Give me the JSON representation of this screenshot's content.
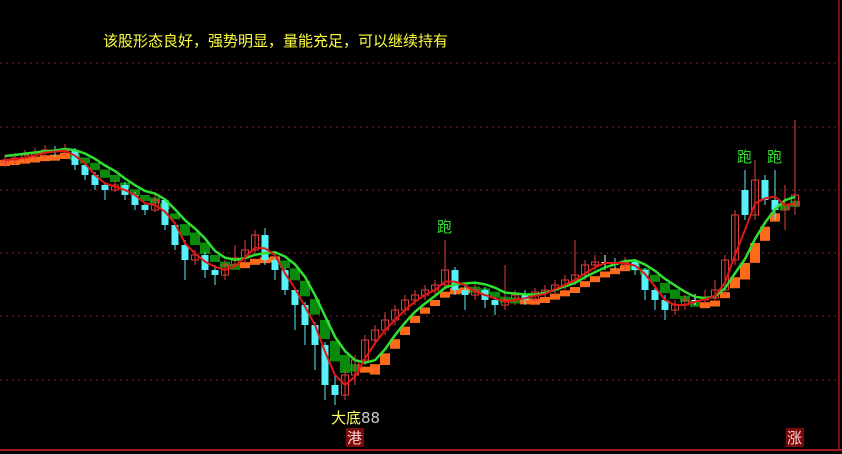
{
  "comment": "该股形态良好，强势明显，量能充足，可以继续持有",
  "colors": {
    "up": "#e03c3c",
    "down": "#55f0f8",
    "band_up": "#ff6a1a",
    "band_down": "#0a8a0a",
    "fast_line": "#e01818",
    "slow_line": "#30e030",
    "grid": "#8a1a1a",
    "comment": "#ffff40",
    "label_run": "#30e030",
    "label_bottom": "#ffff60"
  },
  "chart_data": {
    "type": "candlestick",
    "grid": true,
    "overlays": [
      {
        "type": "moving-average",
        "period": 3,
        "color": "#e01818"
      },
      {
        "type": "moving-average",
        "period": 6,
        "color": "#30e030"
      }
    ],
    "candles": [
      [
        28.8,
        29.5,
        28.3,
        29.0
      ],
      [
        29.0,
        29.7,
        28.5,
        29.2
      ],
      [
        29.2,
        30.0,
        28.8,
        29.5
      ],
      [
        29.5,
        30.2,
        29.0,
        29.7
      ],
      [
        29.7,
        30.5,
        29.2,
        30.0
      ],
      [
        30.0,
        30.4,
        29.3,
        29.8
      ],
      [
        29.8,
        30.6,
        29.4,
        30.0
      ],
      [
        30.0,
        30.2,
        28.0,
        28.5
      ],
      [
        28.5,
        28.8,
        27.0,
        27.5
      ],
      [
        27.5,
        27.8,
        26.0,
        26.5
      ],
      [
        26.5,
        26.8,
        25.0,
        26.0
      ],
      [
        26.0,
        27.0,
        25.8,
        26.5
      ],
      [
        26.5,
        26.8,
        25.0,
        25.5
      ],
      [
        25.5,
        25.8,
        24.0,
        24.5
      ],
      [
        24.5,
        24.8,
        23.5,
        24.0
      ],
      [
        24.0,
        25.5,
        23.8,
        25.0
      ],
      [
        25.0,
        25.2,
        22.0,
        22.5
      ],
      [
        22.5,
        22.8,
        20.0,
        20.5
      ],
      [
        20.5,
        21.0,
        17.0,
        19.0
      ],
      [
        19.0,
        20.0,
        18.5,
        19.5
      ],
      [
        19.5,
        19.8,
        17.2,
        18.0
      ],
      [
        18.0,
        18.5,
        16.5,
        17.5
      ],
      [
        17.5,
        19.0,
        17.0,
        18.5
      ],
      [
        18.5,
        20.5,
        18.2,
        19.2
      ],
      [
        19.2,
        21.0,
        18.8,
        20.0
      ],
      [
        20.0,
        22.0,
        19.5,
        21.5
      ],
      [
        21.5,
        22.2,
        18.5,
        19.0
      ],
      [
        19.0,
        19.5,
        17.0,
        18.0
      ],
      [
        18.0,
        18.2,
        15.5,
        16.0
      ],
      [
        16.0,
        16.2,
        12.0,
        14.5
      ],
      [
        14.5,
        14.8,
        10.5,
        12.5
      ],
      [
        12.5,
        12.8,
        8.0,
        10.5
      ],
      [
        10.5,
        10.8,
        5.0,
        6.5
      ],
      [
        6.5,
        7.5,
        4.5,
        5.5
      ],
      [
        5.5,
        8.0,
        5.0,
        7.5
      ],
      [
        7.5,
        9.5,
        6.5,
        9.0
      ],
      [
        9.0,
        11.5,
        8.5,
        11.0
      ],
      [
        11.0,
        12.5,
        10.5,
        12.0
      ],
      [
        12.0,
        13.8,
        11.5,
        13.0
      ],
      [
        13.0,
        14.5,
        12.5,
        14.0
      ],
      [
        14.0,
        15.5,
        13.5,
        15.0
      ],
      [
        15.0,
        16.0,
        14.5,
        15.5
      ],
      [
        15.5,
        16.5,
        15.0,
        16.0
      ],
      [
        16.0,
        17.0,
        15.5,
        16.5
      ],
      [
        16.5,
        21.0,
        16.0,
        18.0
      ],
      [
        18.0,
        18.3,
        15.5,
        16.0
      ],
      [
        16.0,
        16.5,
        14.0,
        15.5
      ],
      [
        15.5,
        16.8,
        15.0,
        16.0
      ],
      [
        16.0,
        16.3,
        14.2,
        15.0
      ],
      [
        15.0,
        15.3,
        13.5,
        14.5
      ],
      [
        14.5,
        18.5,
        14.0,
        15.0
      ],
      [
        15.0,
        16.0,
        14.5,
        15.5
      ],
      [
        15.5,
        16.0,
        14.5,
        15.0
      ],
      [
        15.0,
        16.2,
        14.8,
        15.8
      ],
      [
        15.8,
        16.5,
        15.3,
        16.0
      ],
      [
        16.0,
        17.0,
        15.5,
        16.5
      ],
      [
        16.5,
        17.5,
        16.0,
        17.0
      ],
      [
        17.0,
        21.0,
        16.5,
        17.5
      ],
      [
        17.5,
        19.0,
        17.0,
        18.5
      ],
      [
        18.5,
        19.5,
        18.0,
        18.8
      ],
      [
        18.8,
        19.5,
        18.0,
        18.8
      ],
      [
        18.8,
        19.2,
        18.0,
        18.5
      ],
      [
        18.5,
        19.3,
        18.0,
        18.8
      ],
      [
        18.8,
        19.0,
        17.5,
        18.0
      ],
      [
        18.0,
        18.2,
        15.0,
        16.0
      ],
      [
        16.0,
        16.5,
        14.0,
        15.0
      ],
      [
        15.0,
        15.5,
        13.0,
        14.0
      ],
      [
        14.0,
        15.0,
        13.5,
        14.5
      ],
      [
        14.5,
        15.5,
        14.0,
        15.0
      ],
      [
        15.0,
        15.6,
        14.5,
        15.0
      ],
      [
        15.0,
        16.0,
        14.6,
        15.2
      ],
      [
        15.2,
        17.0,
        15.0,
        16.0
      ],
      [
        16.0,
        19.5,
        15.5,
        19.0
      ],
      [
        19.0,
        24.0,
        18.5,
        23.5
      ],
      [
        26.0,
        28.0,
        23.0,
        23.5
      ],
      [
        23.5,
        29.0,
        23.0,
        27.0
      ],
      [
        27.0,
        27.5,
        24.5,
        25.0
      ],
      [
        25.0,
        28.0,
        23.0,
        24.0
      ],
      [
        24.0,
        26.5,
        22.0,
        24.5
      ],
      [
        24.5,
        33.0,
        23.5,
        25.5
      ]
    ],
    "annotations": [
      {
        "candle": 44,
        "text": "跑",
        "position": "above",
        "style": "run"
      },
      {
        "candle": 74,
        "text": "跑",
        "position": "above",
        "style": "run"
      },
      {
        "candle": 77,
        "text": "跑",
        "position": "above",
        "style": "run"
      },
      {
        "candle": 33,
        "text": "大底",
        "position": "below",
        "style": "bottom"
      },
      {
        "candle": 33,
        "text": "88",
        "position": "below-right",
        "style": "value"
      },
      {
        "candle": 35,
        "text": "港",
        "position": "baseline",
        "style": "tag"
      },
      {
        "candle": 79,
        "text": "涨",
        "position": "baseline",
        "style": "tag"
      }
    ]
  }
}
